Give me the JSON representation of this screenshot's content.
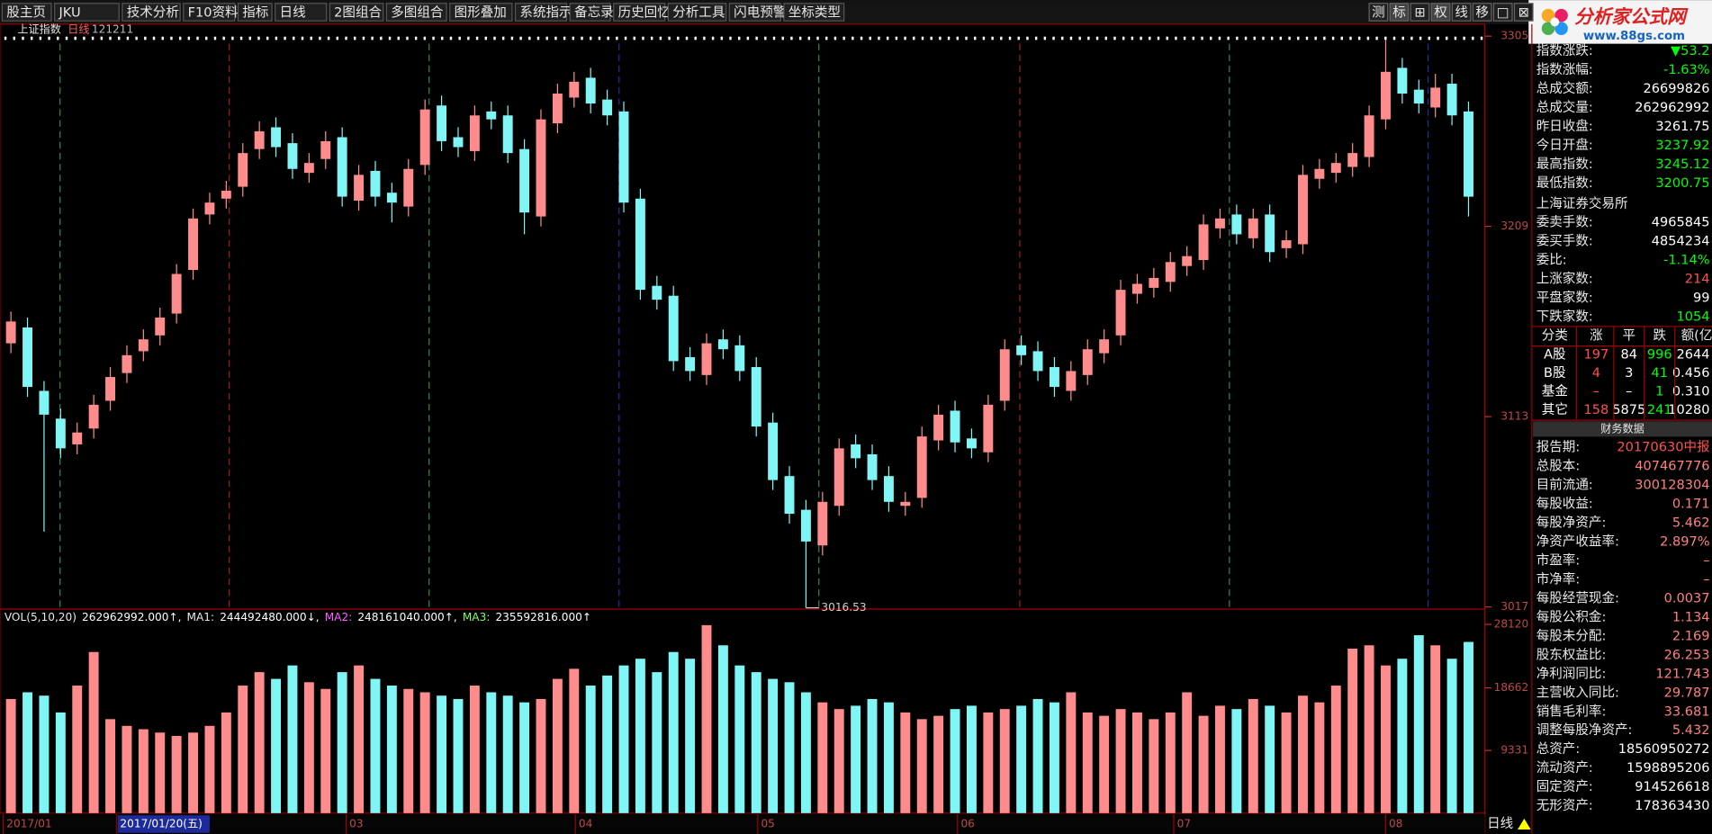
{
  "toolbar": {
    "items": [
      "股主页",
      "JKU",
      "技术分析",
      "F10资料",
      "指标",
      "日线",
      "2图组合",
      "多图组合",
      "图形叠加",
      "系统指示",
      "备忘录",
      "历史回忆",
      "分析工具",
      "闪电预警",
      "坐标类型"
    ],
    "right_buttons": [
      "测",
      "标",
      "⊞",
      "权",
      "线",
      "移",
      "□",
      "⊠"
    ]
  },
  "logo": {
    "title": "分析家公式网",
    "url": "www.88gs.com"
  },
  "chart_data": [
    {
      "type": "candlestick",
      "title": "上证指数",
      "period": "日线",
      "code": "121211",
      "open": [
        3150,
        3158,
        3126,
        3112,
        3099,
        3107,
        3121,
        3135,
        3146,
        3154,
        3165,
        3187,
        3215,
        3223,
        3229,
        3248,
        3259,
        3251,
        3236,
        3243,
        3254,
        3222,
        3237,
        3226,
        3219,
        3240,
        3270,
        3254,
        3247,
        3267,
        3265,
        3248,
        3214,
        3261,
        3274,
        3284,
        3273,
        3267,
        3223,
        3179,
        3174,
        3143,
        3134,
        3152,
        3149,
        3138,
        3110,
        3083,
        3066,
        3048,
        3068,
        3099,
        3094,
        3083,
        3068,
        3072,
        3101,
        3116,
        3102,
        3095,
        3121,
        3149,
        3146,
        3138,
        3126,
        3134,
        3145,
        3154,
        3175,
        3178,
        3181,
        3189,
        3192,
        3208,
        3215,
        3203,
        3215,
        3198,
        3200,
        3233,
        3236,
        3239,
        3244,
        3263,
        3289,
        3278,
        3269,
        3281,
        3267
      ],
      "high": [
        3166,
        3163,
        3131,
        3117,
        3110,
        3124,
        3138,
        3149,
        3157,
        3168,
        3190,
        3218,
        3226,
        3232,
        3251,
        3262,
        3264,
        3256,
        3246,
        3257,
        3259,
        3240,
        3242,
        3231,
        3243,
        3273,
        3275,
        3259,
        3270,
        3272,
        3270,
        3253,
        3268,
        3281,
        3287,
        3289,
        3278,
        3272,
        3228,
        3184,
        3179,
        3148,
        3155,
        3157,
        3154,
        3143,
        3115,
        3088,
        3071,
        3075,
        3102,
        3104,
        3099,
        3088,
        3075,
        3108,
        3119,
        3121,
        3107,
        3124,
        3152,
        3154,
        3151,
        3143,
        3141,
        3152,
        3157,
        3182,
        3185,
        3188,
        3196,
        3199,
        3215,
        3218,
        3220,
        3218,
        3220,
        3207,
        3240,
        3243,
        3246,
        3251,
        3270,
        3303,
        3294,
        3283,
        3286,
        3286,
        3272
      ],
      "low": [
        3145,
        3123,
        3055,
        3092,
        3094,
        3102,
        3116,
        3130,
        3141,
        3149,
        3160,
        3182,
        3210,
        3218,
        3224,
        3243,
        3244,
        3233,
        3231,
        3238,
        3219,
        3217,
        3219,
        3211,
        3214,
        3235,
        3247,
        3244,
        3242,
        3258,
        3241,
        3205,
        3209,
        3256,
        3269,
        3266,
        3260,
        3216,
        3172,
        3167,
        3136,
        3131,
        3129,
        3142,
        3131,
        3103,
        3076,
        3059,
        3016.53,
        3043,
        3063,
        3087,
        3076,
        3065,
        3063,
        3067,
        3096,
        3095,
        3092,
        3090,
        3116,
        3139,
        3131,
        3123,
        3121,
        3129,
        3140,
        3149,
        3170,
        3173,
        3176,
        3184,
        3187,
        3203,
        3200,
        3198,
        3191,
        3193,
        3195,
        3228,
        3231,
        3234,
        3239,
        3258,
        3271,
        3266,
        3264,
        3260,
        3214
      ],
      "close": [
        3161,
        3128,
        3114,
        3097,
        3105,
        3119,
        3133,
        3144,
        3152,
        3163,
        3185,
        3213,
        3221,
        3227,
        3246,
        3257,
        3249,
        3238,
        3241,
        3252,
        3224,
        3235,
        3224,
        3221,
        3238,
        3268,
        3252,
        3249,
        3265,
        3263,
        3246,
        3216,
        3263,
        3276,
        3282,
        3271,
        3265,
        3221,
        3177,
        3172,
        3141,
        3136,
        3150,
        3147,
        3136,
        3108,
        3081,
        3064,
        3050,
        3070,
        3097,
        3092,
        3081,
        3070,
        3070,
        3103,
        3114,
        3100,
        3097,
        3119,
        3147,
        3144,
        3136,
        3128,
        3136,
        3147,
        3152,
        3177,
        3180,
        3183,
        3191,
        3194,
        3210,
        3213,
        3205,
        3213,
        3196,
        3202,
        3235,
        3238,
        3241,
        3246,
        3265,
        3287,
        3276,
        3271,
        3279,
        3265,
        3224
      ],
      "ylim": [
        3017,
        3305
      ],
      "yticks": [
        3017,
        3113,
        3209,
        3305
      ],
      "up_color": "#ff8c8c",
      "down_color": "#7ff5f5",
      "x_labels": [
        "2017/01",
        "2017/01/20(五)",
        "03",
        "04",
        "05",
        "06",
        "07",
        "08"
      ]
    },
    {
      "type": "bar",
      "legend": [
        {
          "text": "VOL(5,10,20)",
          "color": "#e8e8e8"
        },
        {
          "text": "262962992.000↑,",
          "color": "#ffffff"
        },
        {
          "text": "MA1:",
          "color": "#e8e8e8"
        },
        {
          "text": "244492480.000↓,",
          "color": "#ffffff"
        },
        {
          "text": "MA2:",
          "color": "#ff60ff"
        },
        {
          "text": "248161040.000↑,",
          "color": "#ffffff"
        },
        {
          "text": "MA3:",
          "color": "#80ff60"
        },
        {
          "text": "235592816.000↑",
          "color": "#ffffff"
        }
      ],
      "values": [
        17000,
        18000,
        17500,
        15000,
        19000,
        24000,
        14000,
        13000,
        12500,
        12000,
        11500,
        12000,
        13000,
        15000,
        19000,
        21000,
        20000,
        22000,
        19500,
        18500,
        21000,
        22000,
        20000,
        19000,
        18500,
        18000,
        17500,
        17000,
        19000,
        18000,
        17500,
        16500,
        17000,
        20000,
        21500,
        19000,
        20500,
        22000,
        23000,
        21000,
        24000,
        23000,
        28000,
        25000,
        22000,
        21000,
        20000,
        19500,
        18000,
        16500,
        15500,
        16000,
        17000,
        16500,
        15000,
        14000,
        14500,
        15500,
        16000,
        15000,
        15500,
        16000,
        17000,
        16500,
        18000,
        15000,
        14500,
        15500,
        15000,
        14000,
        15000,
        18000,
        14500,
        16000,
        15500,
        17000,
        16000,
        15000,
        17500,
        16500,
        19000,
        24500,
        25000,
        22000,
        23000,
        26500,
        25000,
        23000,
        25500
      ],
      "ylim": [
        0,
        28120
      ],
      "yticks": [
        9331,
        18662,
        28120
      ]
    }
  ],
  "panel": {
    "quote": [
      {
        "label": "指数涨跌:",
        "value": "▼53.2",
        "color": "#00ff00"
      },
      {
        "label": "指数涨幅:",
        "value": "-1.63%",
        "color": "#00ff00"
      },
      {
        "label": "总成交额:",
        "value": "26699826",
        "color": "#ffffff"
      },
      {
        "label": "总成交量:",
        "value": "262962992",
        "color": "#ffffff"
      },
      {
        "label": "昨日收盘:",
        "value": "3261.75",
        "color": "#ffffff"
      },
      {
        "label": "今日开盘:",
        "value": "3237.92",
        "color": "#00ff00"
      },
      {
        "label": "最高指数:",
        "value": "3245.12",
        "color": "#00ff00"
      },
      {
        "label": "最低指数:",
        "value": "3200.75",
        "color": "#00ff00"
      }
    ],
    "exchange": "上海证券交易所",
    "orders": [
      {
        "label": "委卖手数:",
        "value": "4965845",
        "color": "#ffffff"
      },
      {
        "label": "委买手数:",
        "value": "4854234",
        "color": "#ffffff"
      },
      {
        "label": "委比:",
        "value": "-1.14%",
        "color": "#00ff00"
      },
      {
        "label": "上涨家数:",
        "value": "214",
        "color": "#ff5050"
      },
      {
        "label": "平盘家数:",
        "value": "99",
        "color": "#ffffff"
      },
      {
        "label": "下跌家数:",
        "value": "1054",
        "color": "#00ff00"
      }
    ],
    "breadth": {
      "header": [
        "分类",
        "涨",
        "平",
        "跌",
        "额(亿"
      ],
      "rows": [
        [
          "A股",
          "197",
          "84",
          "996",
          "2644"
        ],
        [
          "B股",
          "4",
          "3",
          "41",
          "0.456"
        ],
        [
          "基金",
          "–",
          "–",
          "1",
          "0.310"
        ],
        [
          "其它",
          "158",
          "5875",
          "241",
          "10280"
        ]
      ]
    },
    "finance_title": "财务数据",
    "finance": [
      {
        "label": "报告期:",
        "value": "20170630中报",
        "color": "#ff5050"
      },
      {
        "label": "总股本:",
        "value": "407467776",
        "color": "#ff8080"
      },
      {
        "label": "目前流通:",
        "value": "300128304",
        "color": "#ff8080"
      },
      {
        "label": "每股收益:",
        "value": "0.171",
        "color": "#ff8080"
      },
      {
        "label": "每股净资产:",
        "value": "5.462",
        "color": "#ff8080"
      },
      {
        "label": "净资产收益率:",
        "value": "2.897%",
        "color": "#ff8080"
      },
      {
        "label": "市盈率:",
        "value": "–",
        "color": "#ff8080"
      },
      {
        "label": "市净率:",
        "value": "–",
        "color": "#ff8080"
      },
      {
        "label": "每股经营现金:",
        "value": "0.0037",
        "color": "#ff8080"
      },
      {
        "label": "每股公积金:",
        "value": "1.134",
        "color": "#ff8080"
      },
      {
        "label": "每股未分配:",
        "value": "2.169",
        "color": "#ff8080"
      },
      {
        "label": "股东权益比:",
        "value": "26.253",
        "color": "#ff8080"
      },
      {
        "label": "净利润同比:",
        "value": "121.743",
        "color": "#ff8080"
      },
      {
        "label": "主营收入同比:",
        "value": "29.787",
        "color": "#ff8080"
      },
      {
        "label": "销售毛利率:",
        "value": "33.681",
        "color": "#ff8080"
      },
      {
        "label": "调整每股净资产:",
        "value": "5.432",
        "color": "#ff8080"
      },
      {
        "label": "总资产:",
        "value": "18560950272",
        "color": "#ffffff"
      },
      {
        "label": "流动资产:",
        "value": "1598895206",
        "color": "#ffffff"
      },
      {
        "label": "固定资产:",
        "value": "914526618",
        "color": "#ffffff"
      },
      {
        "label": "无形资产:",
        "value": "178363430",
        "color": "#ffffff"
      }
    ]
  }
}
